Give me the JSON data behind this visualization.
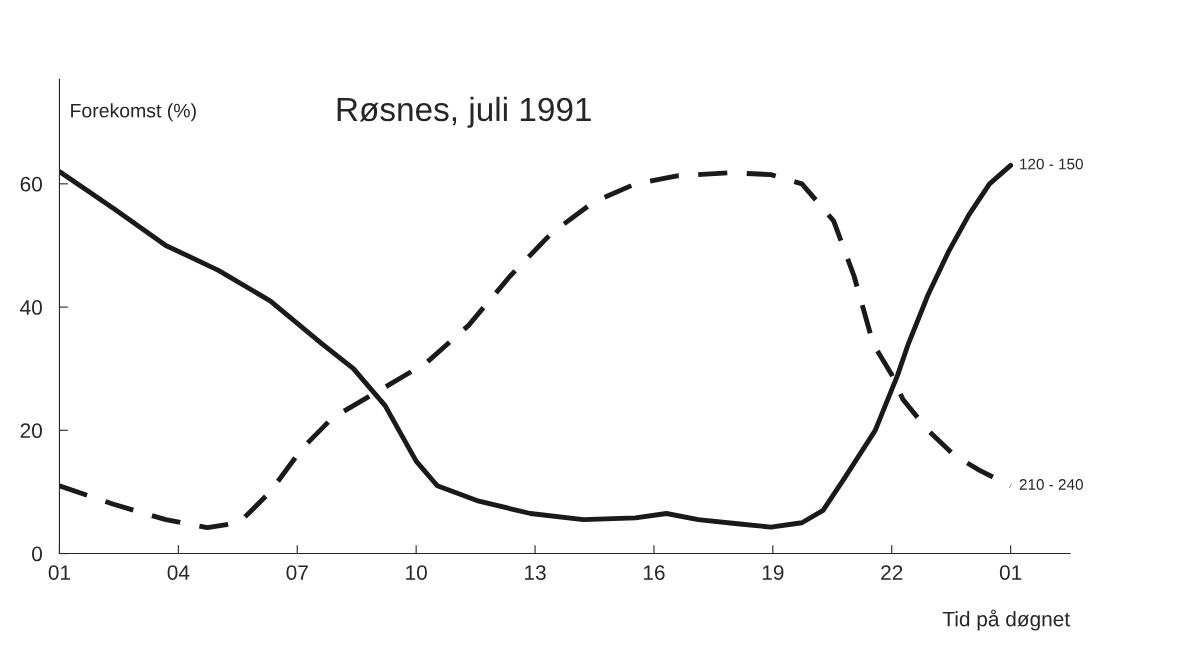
{
  "chart_data": {
    "type": "line",
    "title": "Røsnes, juli 1991",
    "xlabel": "Tid på døgnet",
    "ylabel": "Forekomst (%)",
    "xlim": [
      "1991-07-01T01:00",
      "1991-07-02T02:30"
    ],
    "ylim": [
      0,
      77
    ],
    "xticks": [
      {
        "value": "1991-07-01T01:00",
        "label": "01"
      },
      {
        "value": "1991-07-01T04:00",
        "label": "04"
      },
      {
        "value": "1991-07-01T07:00",
        "label": "07"
      },
      {
        "value": "1991-07-01T10:00",
        "label": "10"
      },
      {
        "value": "1991-07-01T13:00",
        "label": "13"
      },
      {
        "value": "1991-07-01T16:00",
        "label": "16"
      },
      {
        "value": "1991-07-01T19:00",
        "label": "19"
      },
      {
        "value": "1991-07-01T22:00",
        "label": "22"
      },
      {
        "value": "1991-07-02T01:00",
        "label": "01"
      }
    ],
    "yticks": [
      0,
      20,
      40,
      60
    ],
    "grid": false,
    "legend": false,
    "marker": "none",
    "series": [
      {
        "name": "120 - 150",
        "color": "#1a1a1a",
        "line_style": "solid",
        "x": [
          "1991-07-01T01:00",
          "1991-07-01T02:22",
          "1991-07-01T03:41",
          "1991-07-01T05:00",
          "1991-07-01T06:19",
          "1991-07-01T07:38",
          "1991-07-01T08:25",
          "1991-07-01T09:13",
          "1991-07-01T10:00",
          "1991-07-01T10:32",
          "1991-07-01T11:35",
          "1991-07-01T12:53",
          "1991-07-01T14:13",
          "1991-07-01T15:32",
          "1991-07-01T16:19",
          "1991-07-01T17:07",
          "1991-07-01T18:10",
          "1991-07-01T18:57",
          "1991-07-01T19:44",
          "1991-07-01T20:16",
          "1991-07-01T20:47",
          "1991-07-01T21:35",
          "1991-07-01T22:09",
          "1991-07-01T22:25",
          "1991-07-01T22:55",
          "1991-07-01T23:26",
          "1991-07-01T23:57",
          "1991-07-02T00:28",
          "1991-07-02T01:00"
        ],
        "values": [
          62,
          56,
          50,
          46,
          41,
          34,
          30,
          24,
          15,
          11,
          8.5,
          6.5,
          5.5,
          5.8,
          6.5,
          5.5,
          4.8,
          4.3,
          5,
          7,
          12,
          20,
          29,
          34,
          42,
          49,
          55,
          60,
          63
        ]
      },
      {
        "name": "210 - 240",
        "color": "#1a1a1a",
        "line_style": "dashed",
        "x": [
          "1991-07-01T01:00",
          "1991-07-01T02:22",
          "1991-07-01T03:41",
          "1991-07-01T04:44",
          "1991-07-01T05:32",
          "1991-07-01T06:19",
          "1991-07-01T07:07",
          "1991-07-01T07:53",
          "1991-07-01T08:57",
          "1991-07-01T10:16",
          "1991-07-01T11:19",
          "1991-07-01T12:22",
          "1991-07-01T13:25",
          "1991-07-01T14:28",
          "1991-07-01T15:32",
          "1991-07-01T16:35",
          "1991-07-01T17:53",
          "1991-07-01T18:57",
          "1991-07-01T19:44",
          "1991-07-01T20:32",
          "1991-07-01T21:03",
          "1991-07-01T21:32",
          "1991-07-01T22:00",
          "1991-07-01T22:17",
          "1991-07-01T22:55",
          "1991-07-01T23:34",
          "1991-07-02T00:13",
          "1991-07-02T01:00"
        ],
        "values": [
          11,
          8,
          5.5,
          4.2,
          5,
          10,
          17,
          22,
          26,
          31,
          37,
          45,
          52,
          57,
          60,
          61.3,
          61.8,
          61.5,
          60,
          54,
          45,
          34,
          29,
          25,
          20,
          16,
          13.5,
          11
        ]
      }
    ]
  }
}
